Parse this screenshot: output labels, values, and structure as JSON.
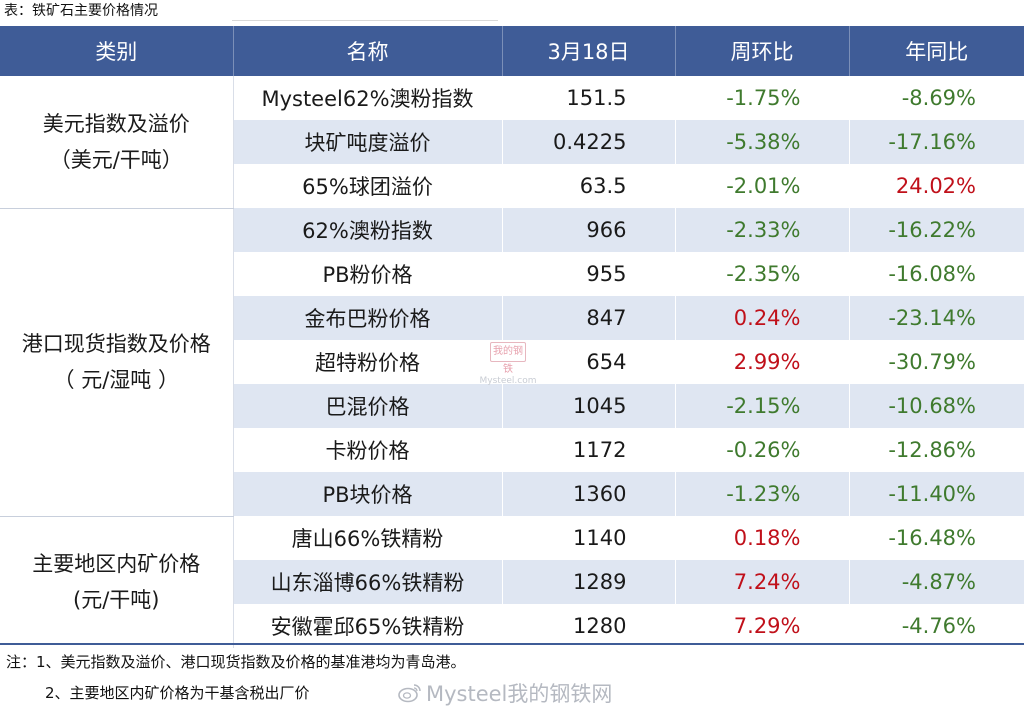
{
  "caption": "表：铁矿石主要价格情况",
  "headers": [
    "类别",
    "名称",
    "3月18日",
    "周环比",
    "年同比"
  ],
  "categories": [
    {
      "line1": "美元指数及溢价",
      "line2": "（美元/干吨）"
    },
    {
      "line1": "港口现货指数及价格",
      "line2": "（ 元/湿吨 ）"
    },
    {
      "line1": "主要地区内矿价格",
      "line2": "(元/干吨)"
    }
  ],
  "rows": [
    {
      "name": "Mysteel62%澳粉指数",
      "value": "151.5",
      "wow": "-1.75%",
      "yoy": "-8.69%"
    },
    {
      "name": "块矿吨度溢价",
      "value": "0.4225",
      "wow": "-5.38%",
      "yoy": "-17.16%"
    },
    {
      "name": "65%球团溢价",
      "value": "63.5",
      "wow": "-2.01%",
      "yoy": "24.02%"
    },
    {
      "name": "62%澳粉指数",
      "value": "966",
      "wow": "-2.33%",
      "yoy": "-16.22%"
    },
    {
      "name": "PB粉价格",
      "value": "955",
      "wow": "-2.35%",
      "yoy": "-16.08%"
    },
    {
      "name": "金布巴粉价格",
      "value": "847",
      "wow": "0.24%",
      "yoy": "-23.14%"
    },
    {
      "name": "超特粉价格",
      "value": "654",
      "wow": "2.99%",
      "yoy": "-30.79%"
    },
    {
      "name": "巴混价格",
      "value": "1045",
      "wow": "-2.15%",
      "yoy": "-10.68%"
    },
    {
      "name": "卡粉价格",
      "value": "1172",
      "wow": "-0.26%",
      "yoy": "-12.86%"
    },
    {
      "name": "PB块价格",
      "value": "1360",
      "wow": "-1.23%",
      "yoy": "-11.40%"
    },
    {
      "name": "唐山66%铁精粉",
      "value": "1140",
      "wow": "0.18%",
      "yoy": "-16.48%"
    },
    {
      "name": "山东淄博66%铁精粉",
      "value": "1289",
      "wow": "7.24%",
      "yoy": "-4.87%"
    },
    {
      "name": "安徽霍邱65%铁精粉",
      "value": "1280",
      "wow": "7.29%",
      "yoy": "-4.76%"
    }
  ],
  "notes": {
    "note1": "注：1、美元指数及溢价、港口现货指数及价格的基准港均为青岛港。",
    "note2": "2、主要地区内矿价格为干基含税出厂价"
  },
  "watermark": {
    "center_logo": "我的钢铁",
    "center_text": "Mysteel.com",
    "bottom": "Mysteel我的钢铁网"
  },
  "colors": {
    "header_bg": "#3f5c97",
    "band_bg": "#dfe6f2",
    "positive": "#c0101a",
    "negative": "#3f7a2e"
  }
}
